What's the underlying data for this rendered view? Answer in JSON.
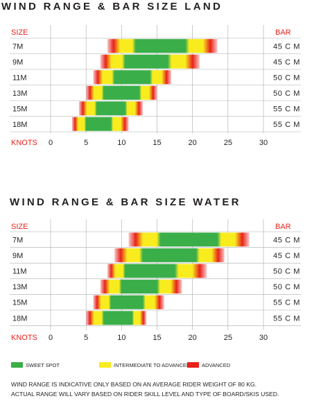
{
  "colors": {
    "sweet": "#3aae49",
    "inter": "#f8ec1f",
    "adv": "#e8221b",
    "text": "#231f20",
    "grid": "#a7a9ac"
  },
  "legend": [
    {
      "name": "SWEET SPOT",
      "color": "#3aae49"
    },
    {
      "name": "INTERMEDIATE TO ADVANCED",
      "color": "#f8ec1f"
    },
    {
      "name": "ADVANCED",
      "color": "#e8221b"
    }
  ],
  "notes": [
    "WIND RANGE IS INDICATIVE ONLY BASED ON AN AVERAGE RIDER WEIGHT OF 80 KG.",
    "ACTUAL RANGE WILL VARY BASED ON RIDER SKILL LEVEL AND TYPE OF BOARD/SKIS USED."
  ],
  "chart_data": [
    {
      "type": "bar",
      "title": "WIND RANGE & BAR SIZE LAND",
      "size_label": "SIZE",
      "bar_label": "BAR",
      "xlabel": "KNOTS",
      "xticks": [
        0,
        5,
        10,
        15,
        20,
        25,
        30
      ],
      "xlim": [
        0,
        30
      ],
      "rows": [
        {
          "size": "7M",
          "bar": "45 C M",
          "range": [
            8,
            23.5
          ],
          "sweet": [
            12,
            19
          ]
        },
        {
          "size": "9M",
          "bar": "45 C M",
          "range": [
            7,
            21
          ],
          "sweet": [
            10.5,
            16.5
          ]
        },
        {
          "size": "11M",
          "bar": "50 C M",
          "range": [
            6,
            17
          ],
          "sweet": [
            9,
            14
          ]
        },
        {
          "size": "13M",
          "bar": "50 C M",
          "range": [
            5,
            15
          ],
          "sweet": [
            7.5,
            12.5
          ]
        },
        {
          "size": "15M",
          "bar": "55 C M",
          "range": [
            4,
            13
          ],
          "sweet": [
            6.5,
            10.5
          ]
        },
        {
          "size": "18M",
          "bar": "55 C M",
          "range": [
            3,
            11
          ],
          "sweet": [
            5,
            8.5
          ]
        }
      ]
    },
    {
      "type": "bar",
      "title": "WIND RANGE & BAR SIZE WATER",
      "size_label": "SIZE",
      "bar_label": "BAR",
      "xlabel": "KNOTS",
      "xticks": [
        0,
        5,
        10,
        15,
        20,
        25,
        30
      ],
      "xlim": [
        0,
        30
      ],
      "rows": [
        {
          "size": "7M",
          "bar": "45 C M",
          "range": [
            11,
            28
          ],
          "sweet": [
            15.5,
            23.5
          ]
        },
        {
          "size": "9M",
          "bar": "45 C M",
          "range": [
            9,
            24.5
          ],
          "sweet": [
            13,
            20.5
          ]
        },
        {
          "size": "11M",
          "bar": "50 C M",
          "range": [
            8,
            22
          ],
          "sweet": [
            10.5,
            17.5
          ]
        },
        {
          "size": "13M",
          "bar": "50 C M",
          "range": [
            7,
            18.5
          ],
          "sweet": [
            10,
            15
          ]
        },
        {
          "size": "15M",
          "bar": "55 C M",
          "range": [
            6,
            16
          ],
          "sweet": [
            8.5,
            13
          ]
        },
        {
          "size": "18M",
          "bar": "55 C M",
          "range": [
            5,
            13.5
          ],
          "sweet": [
            7.5,
            11.5
          ]
        }
      ]
    }
  ]
}
